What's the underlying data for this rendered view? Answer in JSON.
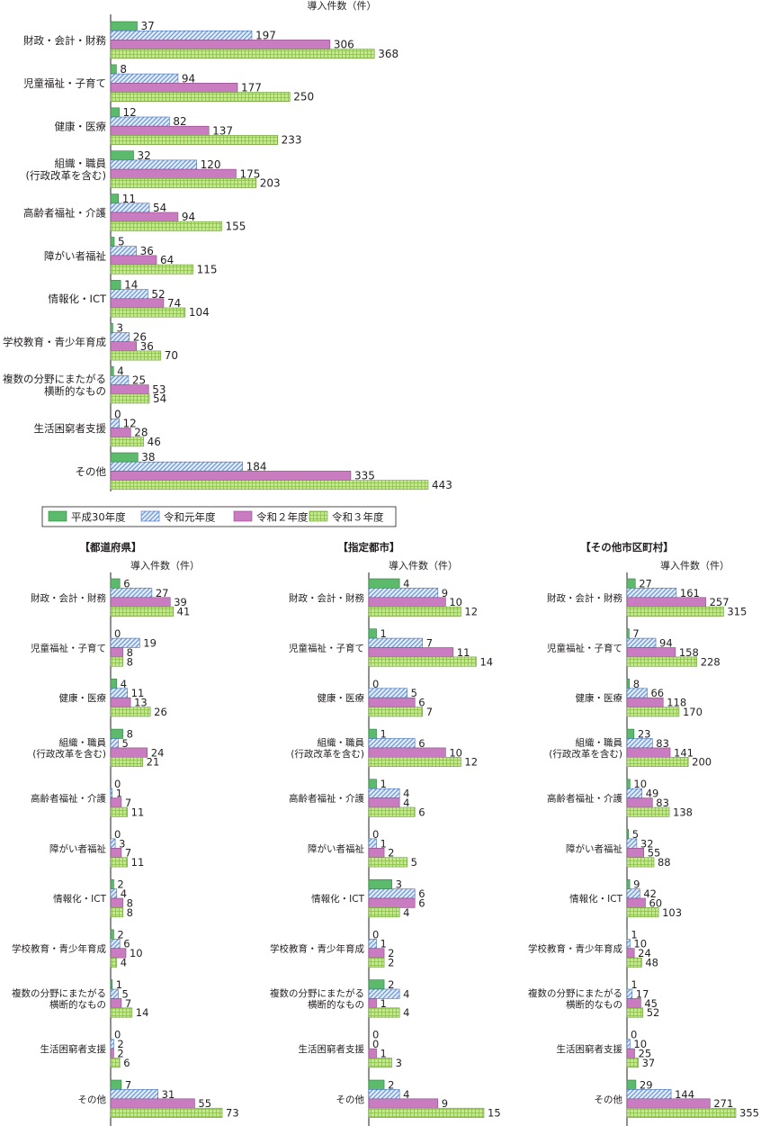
{
  "chart_data": [
    {
      "type": "bar",
      "orientation": "horizontal",
      "title": "",
      "unit_label": "導入件数（件）",
      "categories": [
        "財政・会計・財務",
        "児童福祉・子育て",
        "健康・医療",
        "組織・職員\n(行政改革を含む)",
        "高齢者福祉・介護",
        "障がい者福祉",
        "情報化・ICT",
        "学校教育・青少年育成",
        "複数の分野にまたがる\n横断的なもの",
        "生活困窮者支援",
        "その他"
      ],
      "series": [
        {
          "name": "平成30年度",
          "values": [
            37,
            8,
            12,
            32,
            11,
            5,
            14,
            3,
            4,
            0,
            38
          ]
        },
        {
          "name": "令和元年度",
          "values": [
            197,
            94,
            82,
            120,
            54,
            36,
            52,
            26,
            25,
            12,
            184
          ]
        },
        {
          "name": "令和２年度",
          "values": [
            306,
            177,
            137,
            175,
            94,
            64,
            74,
            36,
            53,
            28,
            335
          ]
        },
        {
          "name": "令和３年度",
          "values": [
            368,
            250,
            233,
            203,
            155,
            115,
            104,
            70,
            54,
            46,
            443
          ]
        }
      ],
      "xlim": [
        0,
        443
      ]
    },
    {
      "type": "bar",
      "orientation": "horizontal",
      "title": "【都道府県】",
      "unit_label": "導入件数（件）",
      "categories": [
        "財政・会計・財務",
        "児童福祉・子育て",
        "健康・医療",
        "組織・職員\n(行政改革を含む)",
        "高齢者福祉・介護",
        "障がい者福祉",
        "情報化・ICT",
        "学校教育・青少年育成",
        "複数の分野にまたがる\n横断的なもの",
        "生活困窮者支援",
        "その他"
      ],
      "series": [
        {
          "name": "平成30年度",
          "values": [
            6,
            0,
            4,
            8,
            0,
            0,
            2,
            2,
            1,
            0,
            7
          ]
        },
        {
          "name": "令和元年度",
          "values": [
            27,
            19,
            11,
            5,
            1,
            3,
            4,
            6,
            5,
            2,
            31
          ]
        },
        {
          "name": "令和２年度",
          "values": [
            39,
            8,
            13,
            24,
            7,
            7,
            8,
            10,
            7,
            2,
            55
          ]
        },
        {
          "name": "令和３年度",
          "values": [
            41,
            8,
            26,
            21,
            11,
            11,
            8,
            4,
            14,
            6,
            73
          ]
        }
      ],
      "xlim": [
        0,
        73
      ]
    },
    {
      "type": "bar",
      "orientation": "horizontal",
      "title": "【指定都市】",
      "unit_label": "導入件数（件）",
      "categories": [
        "財政・会計・財務",
        "児童福祉・子育て",
        "健康・医療",
        "組織・職員\n(行政改革を含む)",
        "高齢者福祉・介護",
        "障がい者福祉",
        "情報化・ICT",
        "学校教育・青少年育成",
        "複数の分野にまたがる\n横断的なもの",
        "生活困窮者支援",
        "その他"
      ],
      "series": [
        {
          "name": "平成30年度",
          "values": [
            4,
            1,
            0,
            1,
            1,
            0,
            3,
            0,
            2,
            0,
            2
          ]
        },
        {
          "name": "令和元年度",
          "values": [
            9,
            7,
            5,
            6,
            4,
            1,
            6,
            1,
            4,
            0,
            4
          ]
        },
        {
          "name": "令和２年度",
          "values": [
            10,
            11,
            6,
            10,
            4,
            2,
            6,
            2,
            1,
            1,
            9
          ]
        },
        {
          "name": "令和３年度",
          "values": [
            12,
            14,
            7,
            12,
            6,
            5,
            4,
            2,
            4,
            3,
            15
          ]
        }
      ],
      "xlim": [
        0,
        15
      ]
    },
    {
      "type": "bar",
      "orientation": "horizontal",
      "title": "【その他市区町村】",
      "unit_label": "導入件数（件）",
      "categories": [
        "財政・会計・財務",
        "児童福祉・子育て",
        "健康・医療",
        "組織・職員\n(行政改革を含む)",
        "高齢者福祉・介護",
        "障がい者福祉",
        "情報化・ICT",
        "学校教育・青少年育成",
        "複数の分野にまたがる\n横断的なもの",
        "生活困窮者支援",
        "その他"
      ],
      "series": [
        {
          "name": "平成30年度",
          "values": [
            27,
            7,
            8,
            23,
            10,
            5,
            9,
            1,
            1,
            0,
            29
          ]
        },
        {
          "name": "令和元年度",
          "values": [
            161,
            94,
            66,
            83,
            49,
            32,
            42,
            10,
            17,
            10,
            144
          ]
        },
        {
          "name": "令和２年度",
          "values": [
            257,
            158,
            118,
            141,
            83,
            55,
            60,
            24,
            45,
            25,
            271
          ]
        },
        {
          "name": "令和３年度",
          "values": [
            315,
            228,
            170,
            200,
            138,
            88,
            103,
            48,
            52,
            37,
            355
          ]
        }
      ],
      "xlim": [
        0,
        355
      ]
    }
  ],
  "legend": [
    {
      "name": "平成30年度",
      "style": "solid-green"
    },
    {
      "name": "令和元年度",
      "style": "blue-diagonal-hatch"
    },
    {
      "name": "令和２年度",
      "style": "solid-pink"
    },
    {
      "name": "令和３年度",
      "style": "green-grid-pattern"
    }
  ],
  "colors": {
    "green_fill": "#5cba6c",
    "blue_fill": "#6f97d6",
    "blue_bg": "#e3edf9",
    "pink_fill": "#c97cc0",
    "grid_fill": "#c8e39b",
    "grid_line": "#8bbf48",
    "stroke": "#231f20"
  }
}
